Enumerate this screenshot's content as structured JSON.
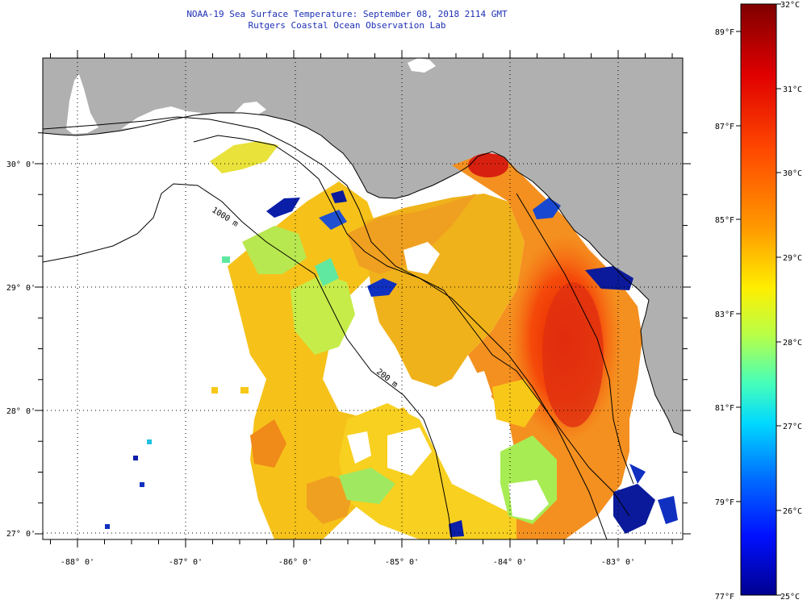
{
  "title": {
    "line1": "NOAA-19 Sea Surface Temperature:  September 08, 2018 2114 GMT",
    "line2": "Rutgers Coastal Ocean Observation Lab"
  },
  "map": {
    "lon_range": [
      -88.25,
      -82.5
    ],
    "lat_range": [
      26.95,
      30.85
    ],
    "lon_ticks": [
      "-88° 0'",
      "-87° 0'",
      "-86° 0'",
      "-85° 0'",
      "-84° 0'",
      "-83° 0'"
    ],
    "lat_ticks": [
      "30° 0'",
      "29° 0'",
      "28° 0'",
      "27° 0'"
    ],
    "isobath_labels": [
      "1000 m",
      "200 m"
    ],
    "colors": {
      "land": "#b0b0b0",
      "clouds": "#ffffff",
      "grid": "#000000"
    }
  },
  "colorbar": {
    "fahrenheit_labels": [
      "89°F",
      "87°F",
      "85°F",
      "83°F",
      "81°F",
      "79°F",
      "77°F"
    ],
    "celsius_labels": [
      "32°C",
      "31°C",
      "30°C",
      "29°C",
      "28°C",
      "27°C",
      "26°C",
      "25°C"
    ],
    "celsius_range": [
      25,
      32
    ],
    "colormap": [
      "#7f0000",
      "#ff0000",
      "#ff8c00",
      "#ffff00",
      "#7fff7f",
      "#00ffff",
      "#0080ff",
      "#0000ff",
      "#00008f"
    ]
  }
}
